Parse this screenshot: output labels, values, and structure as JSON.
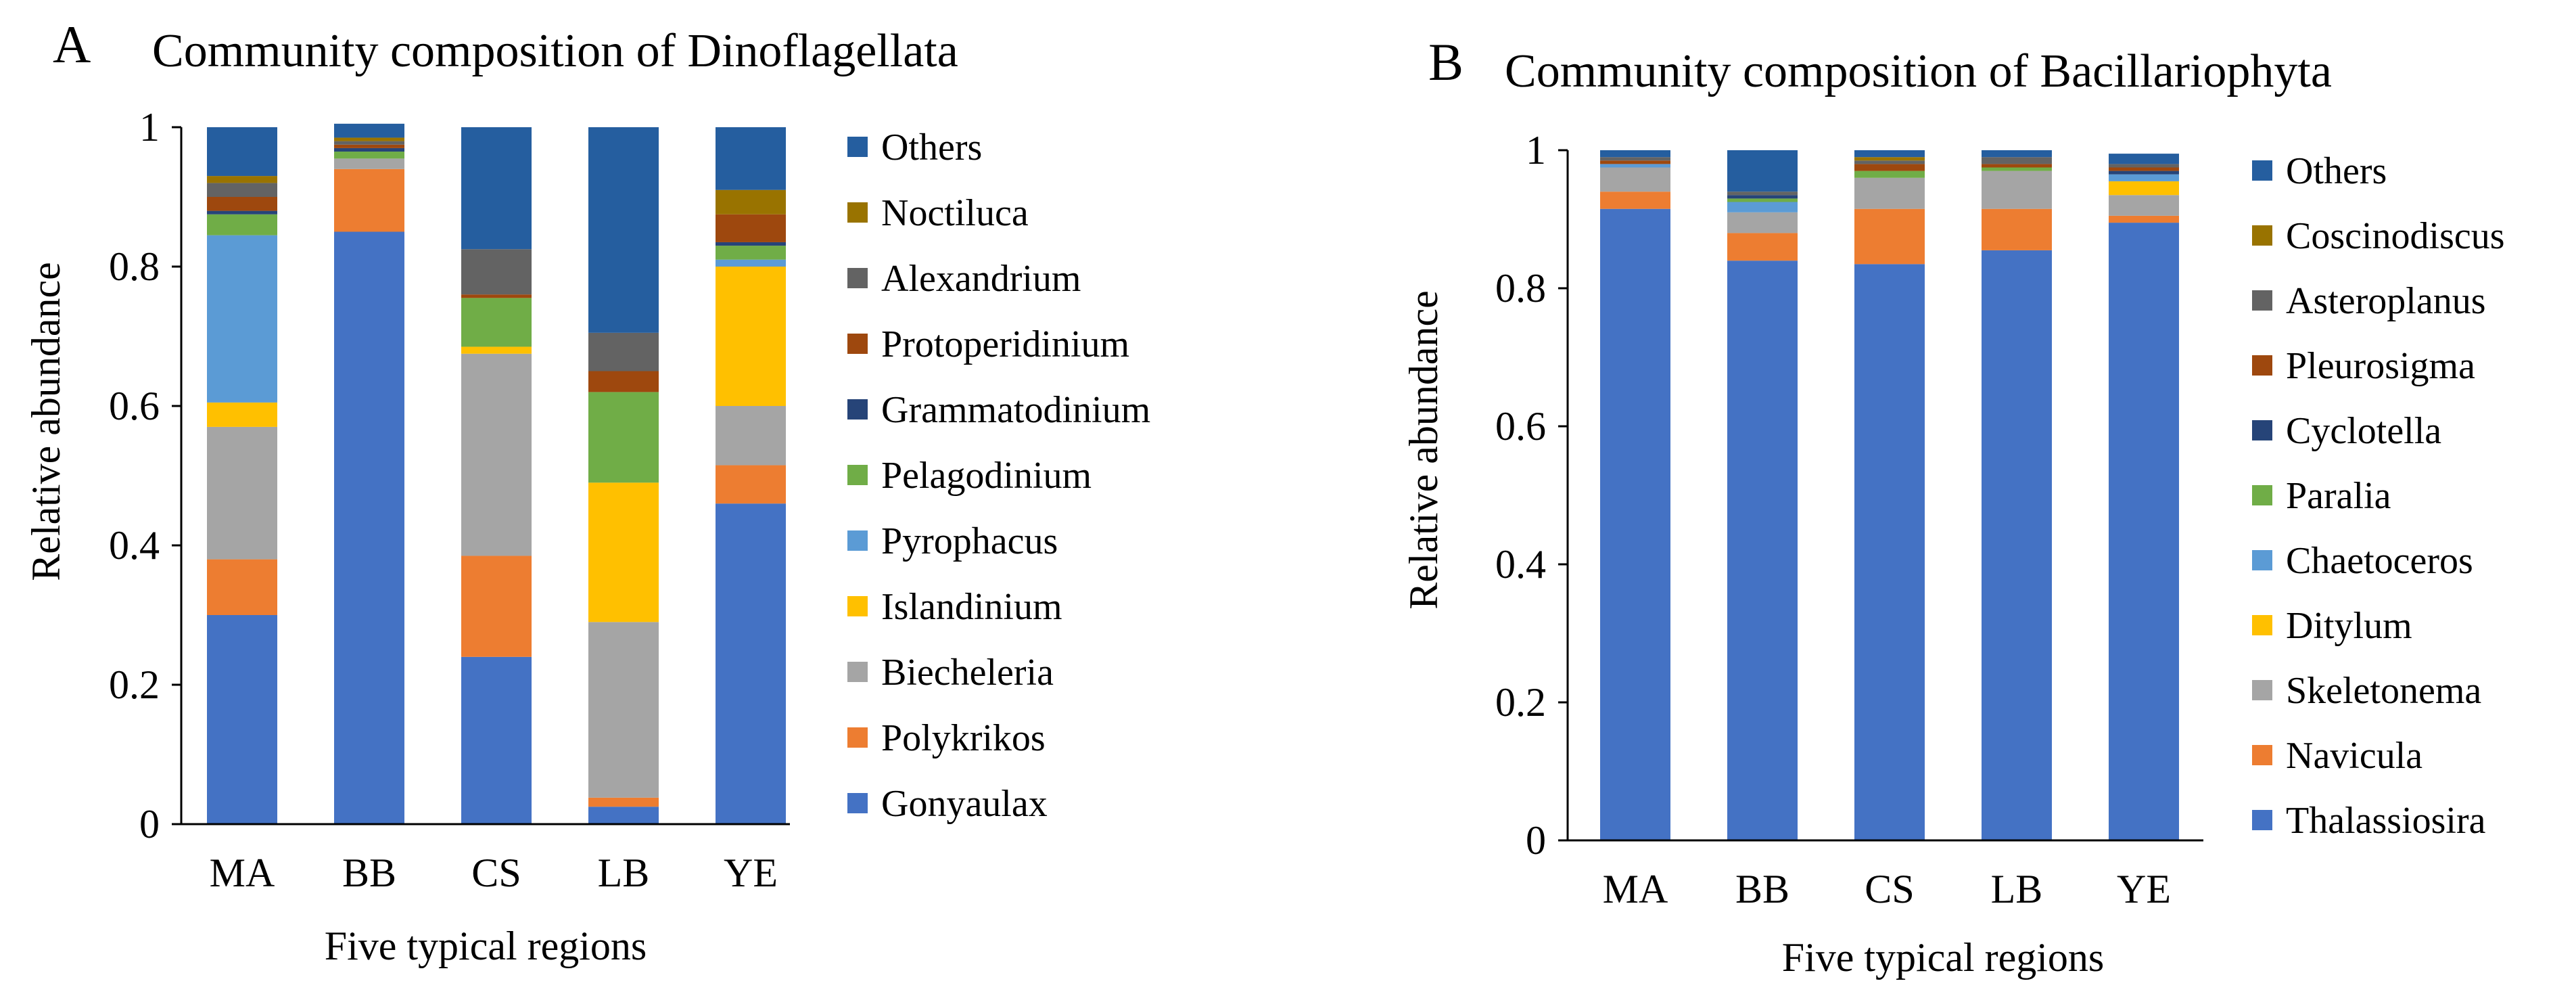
{
  "chart_data": [
    {
      "panel": "A",
      "type": "bar",
      "stacked": true,
      "title": "Community composition of Dinoflagellata",
      "xlabel": "Five typical regions",
      "ylabel": "Relative abundance",
      "ylim": [
        0,
        1
      ],
      "yticks": [
        "0",
        "0.2",
        "0.4",
        "0.6",
        "0.8",
        "1"
      ],
      "categories": [
        "MA",
        "BB",
        "CS",
        "LB",
        "YE"
      ],
      "series": [
        {
          "name": "Gonyaulax",
          "color": "#4472C4",
          "values": [
            0.3,
            0.85,
            0.24,
            0.025,
            0.46
          ]
        },
        {
          "name": "Polykrikos",
          "color": "#ED7D31",
          "values": [
            0.08,
            0.09,
            0.145,
            0.013,
            0.055
          ]
        },
        {
          "name": "Biecheleria",
          "color": "#A5A5A5",
          "values": [
            0.19,
            0.015,
            0.29,
            0.252,
            0.085
          ]
        },
        {
          "name": "Islandinium",
          "color": "#FFC000",
          "values": [
            0.035,
            0.0,
            0.01,
            0.2,
            0.2
          ]
        },
        {
          "name": "Pyrophacus",
          "color": "#5B9BD5",
          "values": [
            0.24,
            0.0,
            0.0,
            0.0,
            0.01
          ]
        },
        {
          "name": "Pelagodinium",
          "color": "#70AD47",
          "values": [
            0.03,
            0.01,
            0.07,
            0.13,
            0.02
          ]
        },
        {
          "name": "Grammatodinium",
          "color": "#264478",
          "values": [
            0.005,
            0.005,
            0.0,
            0.0,
            0.005
          ]
        },
        {
          "name": "Protoperidinium",
          "color": "#9E480E",
          "values": [
            0.02,
            0.005,
            0.005,
            0.03,
            0.04
          ]
        },
        {
          "name": "Alexandrium",
          "color": "#636363",
          "values": [
            0.02,
            0.005,
            0.065,
            0.055,
            0.0
          ]
        },
        {
          "name": "Noctiluca",
          "color": "#997300",
          "values": [
            0.01,
            0.005,
            0.0,
            0.0,
            0.035
          ]
        },
        {
          "name": "Others",
          "color": "#255E9F",
          "values": [
            0.07,
            0.02,
            0.175,
            0.295,
            0.09
          ]
        }
      ]
    },
    {
      "panel": "B",
      "type": "bar",
      "stacked": true,
      "title": "Community composition of Bacillariophyta",
      "xlabel": "Five typical regions",
      "ylabel": "Relative abundance",
      "ylim": [
        0,
        1
      ],
      "yticks": [
        "0",
        "0.2",
        "0.4",
        "0.6",
        "0.8",
        "1"
      ],
      "categories": [
        "MA",
        "BB",
        "CS",
        "LB",
        "YE"
      ],
      "series": [
        {
          "name": "Thalassiosira",
          "color": "#4472C4",
          "values": [
            0.915,
            0.84,
            0.835,
            0.855,
            0.895
          ]
        },
        {
          "name": "Navicula",
          "color": "#ED7D31",
          "values": [
            0.025,
            0.04,
            0.08,
            0.06,
            0.01
          ]
        },
        {
          "name": "Skeletonema",
          "color": "#A5A5A5",
          "values": [
            0.035,
            0.03,
            0.045,
            0.055,
            0.03
          ]
        },
        {
          "name": "Ditylum",
          "color": "#FFC000",
          "values": [
            0.0,
            0.0,
            0.0,
            0.0,
            0.02
          ]
        },
        {
          "name": "Chaetoceros",
          "color": "#5B9BD5",
          "values": [
            0.005,
            0.015,
            0.0,
            0.0,
            0.01
          ]
        },
        {
          "name": "Paralia",
          "color": "#70AD47",
          "values": [
            0.0,
            0.005,
            0.01,
            0.005,
            0.0
          ]
        },
        {
          "name": "Cyclotella",
          "color": "#264478",
          "values": [
            0.0,
            0.005,
            0.0,
            0.0,
            0.005
          ]
        },
        {
          "name": "Pleurosigma",
          "color": "#9E480E",
          "values": [
            0.005,
            0.0,
            0.01,
            0.005,
            0.005
          ]
        },
        {
          "name": "Asteroplanus",
          "color": "#636363",
          "values": [
            0.005,
            0.005,
            0.005,
            0.01,
            0.005
          ]
        },
        {
          "name": "Coscinodiscus",
          "color": "#997300",
          "values": [
            0.0,
            0.0,
            0.005,
            0.0,
            0.0
          ]
        },
        {
          "name": "Others",
          "color": "#255E9F",
          "values": [
            0.01,
            0.06,
            0.01,
            0.01,
            0.015
          ]
        }
      ]
    }
  ]
}
